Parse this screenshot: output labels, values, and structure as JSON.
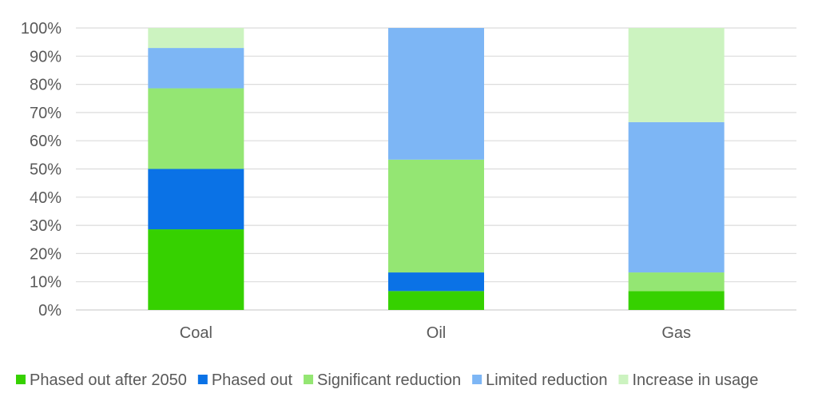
{
  "chart_data": {
    "type": "bar",
    "stacked": true,
    "categories": [
      "Coal",
      "Oil",
      "Gas"
    ],
    "ylim": [
      0,
      100
    ],
    "yticks": [
      "0%",
      "10%",
      "20%",
      "30%",
      "40%",
      "50%",
      "60%",
      "70%",
      "80%",
      "90%",
      "100%"
    ],
    "grid": true,
    "legend_position": "bottom",
    "series": [
      {
        "name": "Phased out after 2050",
        "color": "#36d100",
        "values": [
          28.6,
          6.7,
          6.7
        ]
      },
      {
        "name": "Phased out",
        "color": "#0a72e6",
        "values": [
          21.4,
          6.6,
          0
        ]
      },
      {
        "name": "Significant reduction",
        "color": "#94e673",
        "values": [
          28.6,
          40.0,
          6.6
        ]
      },
      {
        "name": "Limited reduction",
        "color": "#7db6f5",
        "values": [
          14.3,
          46.7,
          53.3
        ]
      },
      {
        "name": "Increase in usage",
        "color": "#ccf3c0",
        "values": [
          7.1,
          0,
          33.4
        ]
      }
    ]
  }
}
